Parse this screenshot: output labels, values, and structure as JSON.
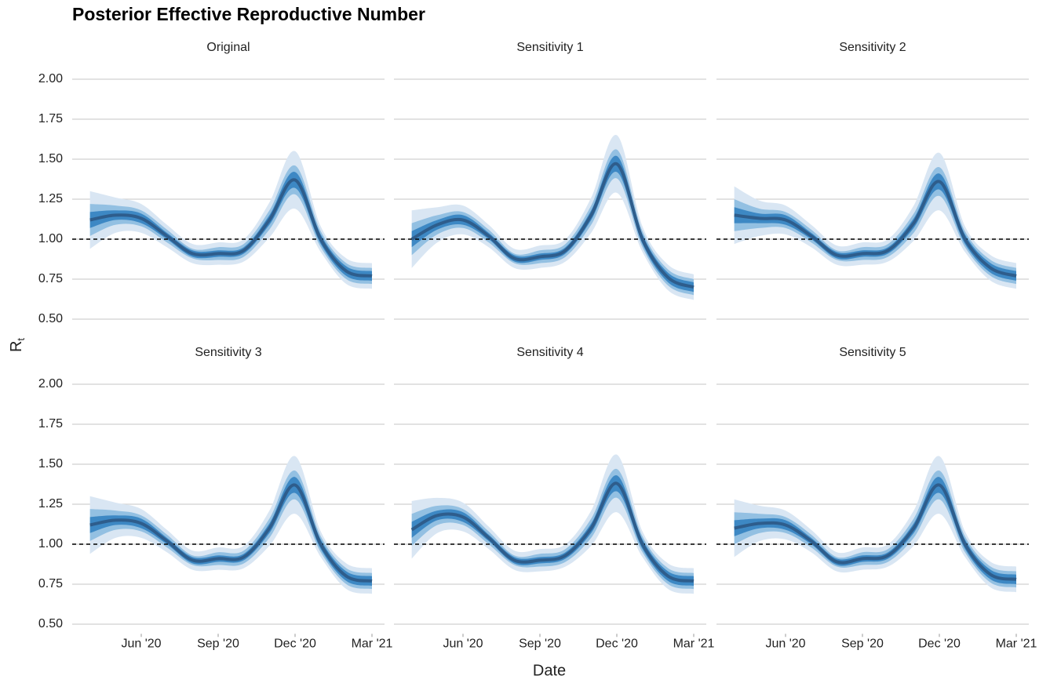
{
  "title": "Posterior Effective Reproductive Number",
  "x_label": "Date",
  "y_label": "R",
  "y_label_subscript": "t",
  "chart_data": [
    {
      "type": "fan",
      "title": "Original",
      "x": [
        "2020-04",
        "2020-05",
        "2020-06",
        "2020-07",
        "2020-08",
        "2020-09",
        "2020-10",
        "2020-11",
        "2020-12",
        "2021-01",
        "2021-02",
        "2021-03"
      ],
      "xlim": [
        "2020-03",
        "2021-03"
      ],
      "xticks": [
        {
          "value": "2020-06",
          "label": "Jun '20"
        },
        {
          "value": "2020-09",
          "label": "Sep '20"
        },
        {
          "value": "2020-12",
          "label": "Dec '20"
        },
        {
          "value": "2021-03",
          "label": "Mar '21"
        }
      ],
      "ylim": [
        0.45,
        2.05
      ],
      "yticks": [
        {
          "value": 0.5,
          "label": "0.50"
        },
        {
          "value": 0.75,
          "label": "0.75"
        },
        {
          "value": 1,
          "label": "1.00"
        },
        {
          "value": 1.25,
          "label": "1.25"
        },
        {
          "value": 1.5,
          "label": "1.50"
        },
        {
          "value": 1.75,
          "label": "1.75"
        },
        {
          "value": 2,
          "label": "2.00"
        }
      ],
      "grid": true,
      "reference_line": 1,
      "median": {
        "color": "#2e5d8c",
        "values": [
          1.12,
          1.15,
          1.13,
          1.02,
          0.91,
          0.91,
          0.93,
          1.12,
          1.37,
          1.0,
          0.8,
          0.77
        ]
      },
      "bands": [
        {
          "color": "#d9e6f3",
          "lower": [
            0.94,
            1.04,
            1.04,
            0.95,
            0.85,
            0.84,
            0.86,
            1.01,
            1.19,
            0.92,
            0.72,
            0.69
          ],
          "upper": [
            1.3,
            1.26,
            1.22,
            1.09,
            0.97,
            0.98,
            1.0,
            1.23,
            1.55,
            1.08,
            0.88,
            0.85
          ]
        },
        {
          "color": "#93c0e2",
          "lower": [
            1.02,
            1.09,
            1.08,
            0.98,
            0.88,
            0.87,
            0.89,
            1.06,
            1.28,
            0.95,
            0.75,
            0.72
          ],
          "upper": [
            1.22,
            1.21,
            1.18,
            1.06,
            0.94,
            0.95,
            0.97,
            1.18,
            1.46,
            1.05,
            0.85,
            0.82
          ]
        },
        {
          "color": "#3d88c4",
          "lower": [
            1.07,
            1.12,
            1.1,
            1.0,
            0.89,
            0.89,
            0.91,
            1.09,
            1.32,
            0.97,
            0.77,
            0.74
          ],
          "upper": [
            1.17,
            1.18,
            1.16,
            1.04,
            0.93,
            0.93,
            0.95,
            1.15,
            1.42,
            1.03,
            0.83,
            0.8
          ]
        }
      ]
    },
    {
      "type": "fan",
      "title": "Sensitivity 1",
      "x": [
        "2020-04",
        "2020-05",
        "2020-06",
        "2020-07",
        "2020-08",
        "2020-09",
        "2020-10",
        "2020-11",
        "2020-12",
        "2021-01",
        "2021-02",
        "2021-03"
      ],
      "xlim": [
        "2020-03",
        "2021-03"
      ],
      "xticks": [
        {
          "value": "2020-06",
          "label": "Jun '20"
        },
        {
          "value": "2020-09",
          "label": "Sep '20"
        },
        {
          "value": "2020-12",
          "label": "Dec '20"
        },
        {
          "value": "2021-03",
          "label": "Mar '21"
        }
      ],
      "ylim": [
        0.45,
        2.05
      ],
      "yticks": [
        {
          "value": 0.5,
          "label": "0.50"
        },
        {
          "value": 0.75,
          "label": "0.75"
        },
        {
          "value": 1,
          "label": "1.00"
        },
        {
          "value": 1.25,
          "label": "1.25"
        },
        {
          "value": 1.5,
          "label": "1.50"
        },
        {
          "value": 1.75,
          "label": "1.75"
        },
        {
          "value": 2,
          "label": "2.00"
        }
      ],
      "grid": true,
      "reference_line": 1,
      "median": {
        "color": "#2e5d8c",
        "values": [
          1.0,
          1.09,
          1.12,
          1.02,
          0.88,
          0.89,
          0.93,
          1.15,
          1.47,
          1.0,
          0.76,
          0.7
        ]
      },
      "bands": [
        {
          "color": "#d9e6f3",
          "lower": [
            0.82,
            0.98,
            1.03,
            0.95,
            0.82,
            0.82,
            0.86,
            1.04,
            1.29,
            0.92,
            0.68,
            0.62
          ],
          "upper": [
            1.18,
            1.2,
            1.21,
            1.09,
            0.94,
            0.96,
            1.0,
            1.26,
            1.65,
            1.08,
            0.84,
            0.78
          ]
        },
        {
          "color": "#93c0e2",
          "lower": [
            0.9,
            1.03,
            1.07,
            0.98,
            0.85,
            0.85,
            0.89,
            1.09,
            1.38,
            0.95,
            0.71,
            0.65
          ],
          "upper": [
            1.1,
            1.15,
            1.17,
            1.06,
            0.91,
            0.93,
            0.97,
            1.21,
            1.56,
            1.05,
            0.81,
            0.75
          ]
        },
        {
          "color": "#3d88c4",
          "lower": [
            0.95,
            1.06,
            1.09,
            1.0,
            0.86,
            0.87,
            0.91,
            1.12,
            1.42,
            0.97,
            0.73,
            0.67
          ],
          "upper": [
            1.05,
            1.12,
            1.15,
            1.04,
            0.9,
            0.91,
            0.95,
            1.18,
            1.52,
            1.03,
            0.79,
            0.73
          ]
        }
      ]
    },
    {
      "type": "fan",
      "title": "Sensitivity 2",
      "x": [
        "2020-04",
        "2020-05",
        "2020-06",
        "2020-07",
        "2020-08",
        "2020-09",
        "2020-10",
        "2020-11",
        "2020-12",
        "2021-01",
        "2021-02",
        "2021-03"
      ],
      "xlim": [
        "2020-03",
        "2021-03"
      ],
      "xticks": [
        {
          "value": "2020-06",
          "label": "Jun '20"
        },
        {
          "value": "2020-09",
          "label": "Sep '20"
        },
        {
          "value": "2020-12",
          "label": "Dec '20"
        },
        {
          "value": "2021-03",
          "label": "Mar '21"
        }
      ],
      "ylim": [
        0.45,
        2.05
      ],
      "yticks": [
        {
          "value": 0.5,
          "label": "0.50"
        },
        {
          "value": 0.75,
          "label": "0.75"
        },
        {
          "value": 1,
          "label": "1.00"
        },
        {
          "value": 1.25,
          "label": "1.25"
        },
        {
          "value": 1.5,
          "label": "1.50"
        },
        {
          "value": 1.75,
          "label": "1.75"
        },
        {
          "value": 2,
          "label": "2.00"
        }
      ],
      "grid": true,
      "reference_line": 1,
      "median": {
        "color": "#2e5d8c",
        "values": [
          1.15,
          1.13,
          1.12,
          1.02,
          0.9,
          0.91,
          0.93,
          1.1,
          1.36,
          1.0,
          0.82,
          0.77
        ]
      },
      "bands": [
        {
          "color": "#d9e6f3",
          "lower": [
            0.97,
            1.02,
            1.03,
            0.95,
            0.84,
            0.84,
            0.86,
            0.99,
            1.18,
            0.92,
            0.74,
            0.69
          ],
          "upper": [
            1.33,
            1.24,
            1.21,
            1.09,
            0.96,
            0.98,
            1.0,
            1.21,
            1.54,
            1.08,
            0.9,
            0.85
          ]
        },
        {
          "color": "#93c0e2",
          "lower": [
            1.05,
            1.07,
            1.07,
            0.98,
            0.87,
            0.87,
            0.89,
            1.04,
            1.27,
            0.95,
            0.77,
            0.72
          ],
          "upper": [
            1.25,
            1.19,
            1.17,
            1.06,
            0.93,
            0.95,
            0.97,
            1.16,
            1.45,
            1.05,
            0.87,
            0.82
          ]
        },
        {
          "color": "#3d88c4",
          "lower": [
            1.1,
            1.1,
            1.09,
            1.0,
            0.88,
            0.89,
            0.91,
            1.07,
            1.31,
            0.97,
            0.79,
            0.74
          ],
          "upper": [
            1.2,
            1.16,
            1.15,
            1.04,
            0.92,
            0.93,
            0.95,
            1.13,
            1.41,
            1.03,
            0.85,
            0.8
          ]
        }
      ]
    },
    {
      "type": "fan",
      "title": "Sensitivity 3",
      "x": [
        "2020-04",
        "2020-05",
        "2020-06",
        "2020-07",
        "2020-08",
        "2020-09",
        "2020-10",
        "2020-11",
        "2020-12",
        "2021-01",
        "2021-02",
        "2021-03"
      ],
      "xlim": [
        "2020-03",
        "2021-03"
      ],
      "xticks": [
        {
          "value": "2020-06",
          "label": "Jun '20"
        },
        {
          "value": "2020-09",
          "label": "Sep '20"
        },
        {
          "value": "2020-12",
          "label": "Dec '20"
        },
        {
          "value": "2021-03",
          "label": "Mar '21"
        }
      ],
      "ylim": [
        0.45,
        2.05
      ],
      "yticks": [
        {
          "value": 0.5,
          "label": "0.50"
        },
        {
          "value": 0.75,
          "label": "0.75"
        },
        {
          "value": 1,
          "label": "1.00"
        },
        {
          "value": 1.25,
          "label": "1.25"
        },
        {
          "value": 1.5,
          "label": "1.50"
        },
        {
          "value": 1.75,
          "label": "1.75"
        },
        {
          "value": 2,
          "label": "2.00"
        }
      ],
      "grid": true,
      "reference_line": 1,
      "median": {
        "color": "#2e5d8c",
        "values": [
          1.12,
          1.15,
          1.13,
          1.02,
          0.9,
          0.91,
          0.92,
          1.1,
          1.37,
          1.0,
          0.8,
          0.77
        ]
      },
      "bands": [
        {
          "color": "#d9e6f3",
          "lower": [
            0.94,
            1.04,
            1.04,
            0.95,
            0.84,
            0.84,
            0.85,
            0.99,
            1.19,
            0.92,
            0.72,
            0.69
          ],
          "upper": [
            1.3,
            1.26,
            1.22,
            1.09,
            0.96,
            0.98,
            0.99,
            1.21,
            1.55,
            1.08,
            0.88,
            0.85
          ]
        },
        {
          "color": "#93c0e2",
          "lower": [
            1.02,
            1.09,
            1.08,
            0.98,
            0.87,
            0.87,
            0.88,
            1.04,
            1.28,
            0.95,
            0.75,
            0.72
          ],
          "upper": [
            1.22,
            1.21,
            1.18,
            1.06,
            0.93,
            0.95,
            0.96,
            1.16,
            1.46,
            1.05,
            0.85,
            0.82
          ]
        },
        {
          "color": "#3d88c4",
          "lower": [
            1.07,
            1.12,
            1.1,
            1.0,
            0.88,
            0.89,
            0.9,
            1.07,
            1.32,
            0.97,
            0.77,
            0.74
          ],
          "upper": [
            1.17,
            1.18,
            1.16,
            1.04,
            0.92,
            0.93,
            0.94,
            1.13,
            1.42,
            1.03,
            0.83,
            0.8
          ]
        }
      ]
    },
    {
      "type": "fan",
      "title": "Sensitivity 4",
      "x": [
        "2020-04",
        "2020-05",
        "2020-06",
        "2020-07",
        "2020-08",
        "2020-09",
        "2020-10",
        "2020-11",
        "2020-12",
        "2021-01",
        "2021-02",
        "2021-03"
      ],
      "xlim": [
        "2020-03",
        "2021-03"
      ],
      "xticks": [
        {
          "value": "2020-06",
          "label": "Jun '20"
        },
        {
          "value": "2020-09",
          "label": "Sep '20"
        },
        {
          "value": "2020-12",
          "label": "Dec '20"
        },
        {
          "value": "2021-03",
          "label": "Mar '21"
        }
      ],
      "ylim": [
        0.45,
        2.05
      ],
      "yticks": [
        {
          "value": 0.5,
          "label": "0.50"
        },
        {
          "value": 0.75,
          "label": "0.75"
        },
        {
          "value": 1,
          "label": "1.00"
        },
        {
          "value": 1.25,
          "label": "1.25"
        },
        {
          "value": 1.5,
          "label": "1.50"
        },
        {
          "value": 1.75,
          "label": "1.75"
        },
        {
          "value": 2,
          "label": "2.00"
        }
      ],
      "grid": true,
      "reference_line": 1,
      "median": {
        "color": "#2e5d8c",
        "values": [
          1.09,
          1.18,
          1.17,
          1.04,
          0.9,
          0.9,
          0.93,
          1.1,
          1.38,
          1.0,
          0.8,
          0.77
        ]
      },
      "bands": [
        {
          "color": "#d9e6f3",
          "lower": [
            0.91,
            1.07,
            1.08,
            0.97,
            0.84,
            0.83,
            0.86,
            0.99,
            1.2,
            0.92,
            0.72,
            0.69
          ],
          "upper": [
            1.27,
            1.29,
            1.26,
            1.11,
            0.96,
            0.97,
            1.0,
            1.21,
            1.56,
            1.08,
            0.88,
            0.85
          ]
        },
        {
          "color": "#93c0e2",
          "lower": [
            0.99,
            1.12,
            1.12,
            1.0,
            0.87,
            0.86,
            0.89,
            1.04,
            1.29,
            0.95,
            0.75,
            0.72
          ],
          "upper": [
            1.19,
            1.24,
            1.22,
            1.08,
            0.93,
            0.94,
            0.97,
            1.16,
            1.47,
            1.05,
            0.85,
            0.82
          ]
        },
        {
          "color": "#3d88c4",
          "lower": [
            1.04,
            1.15,
            1.14,
            1.02,
            0.88,
            0.88,
            0.91,
            1.07,
            1.33,
            0.97,
            0.77,
            0.74
          ],
          "upper": [
            1.14,
            1.21,
            1.2,
            1.06,
            0.92,
            0.92,
            0.95,
            1.13,
            1.43,
            1.03,
            0.83,
            0.8
          ]
        }
      ]
    },
    {
      "type": "fan",
      "title": "Sensitivity 5",
      "x": [
        "2020-04",
        "2020-05",
        "2020-06",
        "2020-07",
        "2020-08",
        "2020-09",
        "2020-10",
        "2020-11",
        "2020-12",
        "2021-01",
        "2021-02",
        "2021-03"
      ],
      "xlim": [
        "2020-03",
        "2021-03"
      ],
      "xticks": [
        {
          "value": "2020-06",
          "label": "Jun '20"
        },
        {
          "value": "2020-09",
          "label": "Sep '20"
        },
        {
          "value": "2020-12",
          "label": "Dec '20"
        },
        {
          "value": "2021-03",
          "label": "Mar '21"
        }
      ],
      "ylim": [
        0.45,
        2.05
      ],
      "yticks": [
        {
          "value": 0.5,
          "label": "0.50"
        },
        {
          "value": 0.75,
          "label": "0.75"
        },
        {
          "value": 1,
          "label": "1.00"
        },
        {
          "value": 1.25,
          "label": "1.25"
        },
        {
          "value": 1.5,
          "label": "1.50"
        },
        {
          "value": 1.75,
          "label": "1.75"
        },
        {
          "value": 2,
          "label": "2.00"
        }
      ],
      "grid": true,
      "reference_line": 1,
      "median": {
        "color": "#2e5d8c",
        "values": [
          1.1,
          1.13,
          1.12,
          1.02,
          0.89,
          0.91,
          0.93,
          1.1,
          1.37,
          1.0,
          0.81,
          0.78
        ]
      },
      "bands": [
        {
          "color": "#d9e6f3",
          "lower": [
            0.92,
            1.02,
            1.03,
            0.95,
            0.83,
            0.84,
            0.86,
            0.99,
            1.19,
            0.92,
            0.73,
            0.7
          ],
          "upper": [
            1.28,
            1.24,
            1.21,
            1.09,
            0.95,
            0.98,
            1.0,
            1.21,
            1.55,
            1.08,
            0.89,
            0.86
          ]
        },
        {
          "color": "#93c0e2",
          "lower": [
            1.0,
            1.07,
            1.07,
            0.98,
            0.86,
            0.87,
            0.89,
            1.04,
            1.28,
            0.95,
            0.76,
            0.73
          ],
          "upper": [
            1.2,
            1.19,
            1.17,
            1.06,
            0.92,
            0.95,
            0.97,
            1.16,
            1.46,
            1.05,
            0.86,
            0.83
          ]
        },
        {
          "color": "#3d88c4",
          "lower": [
            1.05,
            1.1,
            1.09,
            1.0,
            0.87,
            0.89,
            0.91,
            1.07,
            1.32,
            0.97,
            0.78,
            0.75
          ],
          "upper": [
            1.15,
            1.16,
            1.15,
            1.04,
            0.91,
            0.93,
            0.95,
            1.13,
            1.42,
            1.03,
            0.84,
            0.81
          ]
        }
      ]
    }
  ]
}
